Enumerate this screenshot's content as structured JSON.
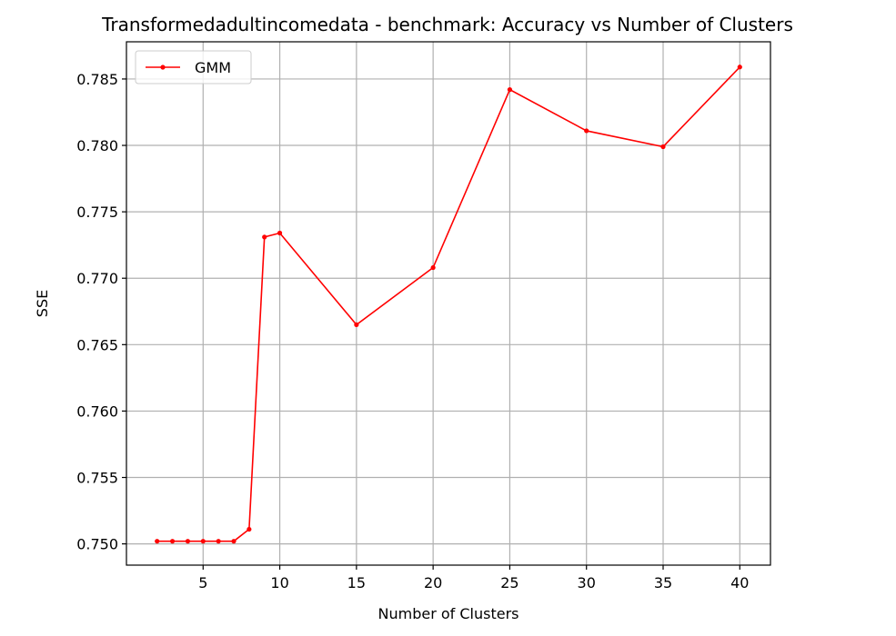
{
  "chart_data": {
    "type": "line",
    "title": "Transformedadultincomedata - benchmark: Accuracy vs Number of Clusters",
    "xlabel": "Number of Clusters",
    "ylabel": "SSE",
    "xlim": [
      0,
      42
    ],
    "ylim": [
      0.7484,
      0.7878
    ],
    "xticks": [
      5,
      10,
      15,
      20,
      25,
      30,
      35,
      40
    ],
    "yticks": [
      0.75,
      0.755,
      0.76,
      0.765,
      0.77,
      0.775,
      0.78,
      0.785
    ],
    "grid": true,
    "legend_position": "top-left",
    "series": [
      {
        "name": "GMM",
        "color": "#ff0000",
        "x": [
          2,
          3,
          4,
          5,
          6,
          7,
          8,
          9,
          10,
          15,
          20,
          25,
          30,
          35,
          40
        ],
        "y": [
          0.7502,
          0.7502,
          0.7502,
          0.7502,
          0.7502,
          0.7502,
          0.7511,
          0.7731,
          0.7734,
          0.7665,
          0.7708,
          0.7842,
          0.7811,
          0.7799,
          0.7859
        ]
      }
    ]
  }
}
